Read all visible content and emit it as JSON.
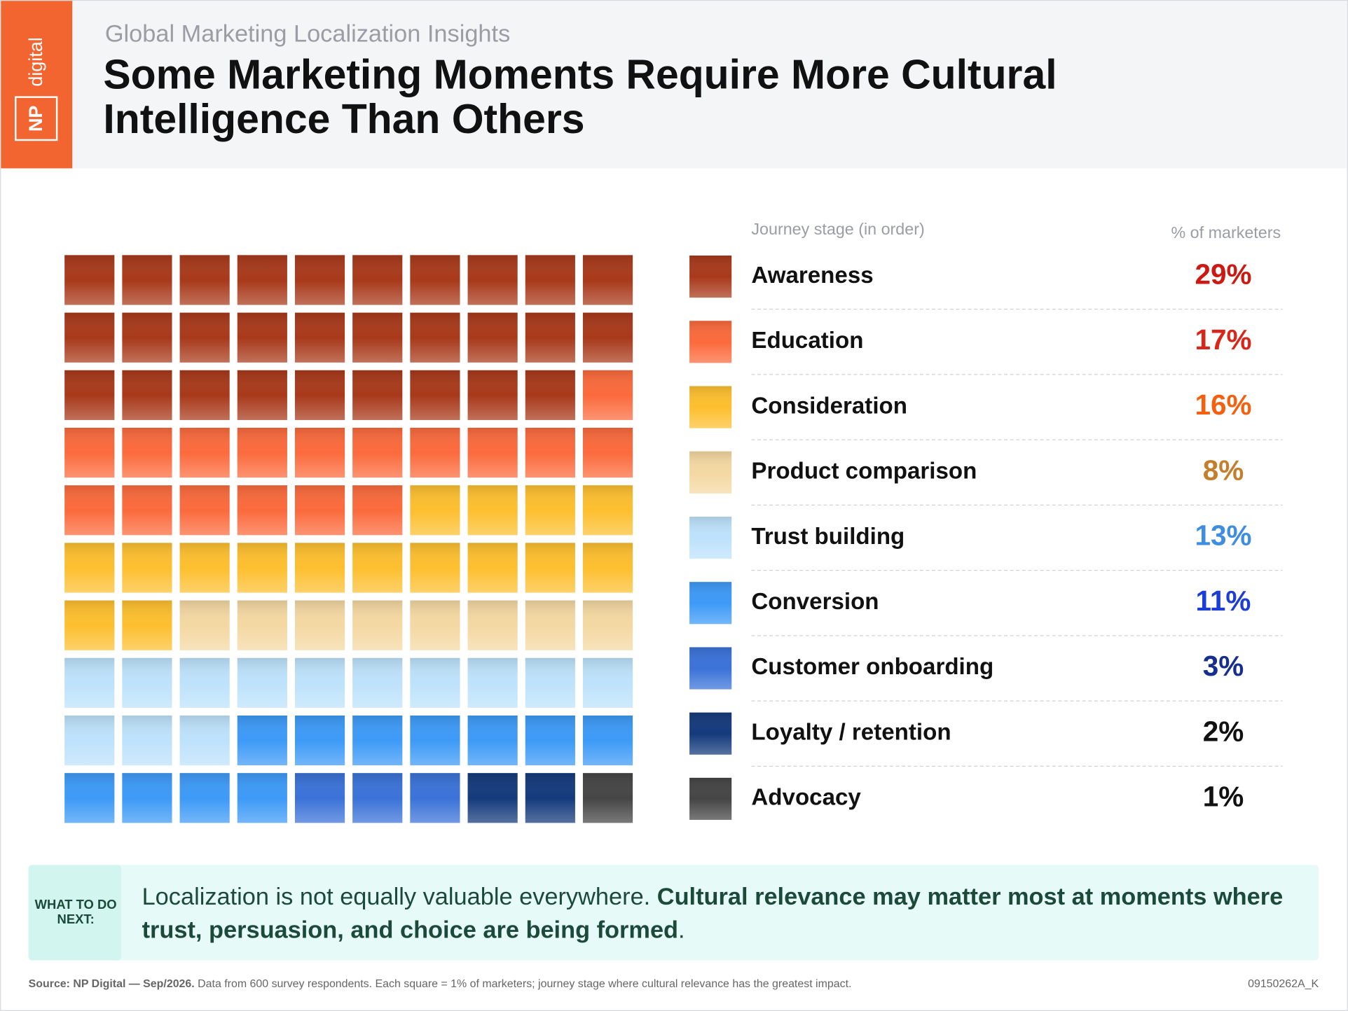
{
  "logo": {
    "np": "NP",
    "digital": "digital"
  },
  "chart_data": {
    "type": "waffle",
    "subtitle": "Global Marketing Localization Insights",
    "title": "Some Marketing Moments Require More Cultural Intelligence Than Others",
    "label_header": "Journey stage (in order)",
    "value_header": "% of marketers",
    "categories": [
      "Awareness",
      "Education",
      "Consideration",
      "Product comparison",
      "Trust building",
      "Conversion",
      "Customer onboarding",
      "Loyalty / retention",
      "Advocacy"
    ],
    "values": [
      29,
      17,
      16,
      8,
      13,
      11,
      3,
      2,
      1
    ],
    "value_labels": [
      "29%",
      "17%",
      "16%",
      "8%",
      "13%",
      "11%",
      "3%",
      "2%",
      "1%"
    ],
    "colors": [
      "#a8391a",
      "#fb6a3c",
      "#fdbf2f",
      "#f4d8a2",
      "#bde2fb",
      "#3d9af7",
      "#3a72d8",
      "#143a7c",
      "#454545"
    ],
    "label_colors": [
      "#cc1a12",
      "#d9261b",
      "#f4600e",
      "#c47f2c",
      "#3f8de0",
      "#1c3ed6",
      "#162f8f",
      "#111111",
      "#111111"
    ],
    "columns": 10
  },
  "callout": {
    "label": "WHAT TO DO NEXT:",
    "text": "Localization is not equally valuable everywhere.",
    "emphasis": "Cultural relevance may matter most at moments where trust, persuasion, and choice are being formed",
    "end": "."
  },
  "footer": {
    "source": "Source: NP Digital — Sep/2026.",
    "note": "Data from 600 survey respondents. Each square = 1% of marketers; journey stage where cultural relevance has the greatest impact.",
    "code": "09150262A_K"
  }
}
